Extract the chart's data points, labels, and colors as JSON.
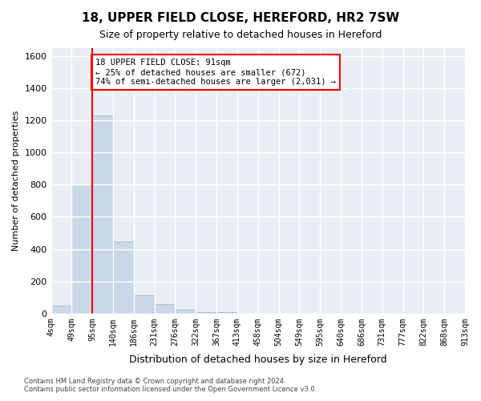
{
  "title1": "18, UPPER FIELD CLOSE, HEREFORD, HR2 7SW",
  "title2": "Size of property relative to detached houses in Hereford",
  "xlabel": "Distribution of detached houses by size in Hereford",
  "ylabel": "Number of detached properties",
  "footnote": "Contains HM Land Registry data © Crown copyright and database right 2024.\nContains public sector information licensed under the Open Government Licence v3.0.",
  "bin_labels": [
    "4sqm",
    "49sqm",
    "95sqm",
    "140sqm",
    "186sqm",
    "231sqm",
    "276sqm",
    "322sqm",
    "367sqm",
    "413sqm",
    "458sqm",
    "504sqm",
    "549sqm",
    "595sqm",
    "640sqm",
    "686sqm",
    "731sqm",
    "777sqm",
    "822sqm",
    "868sqm",
    "913sqm"
  ],
  "bar_values": [
    50,
    800,
    1230,
    450,
    115,
    60,
    25,
    10,
    8,
    0,
    0,
    0,
    0,
    0,
    0,
    0,
    0,
    0,
    0,
    0
  ],
  "bar_color": "#c8d8e8",
  "bar_edge_color": "#a0b8cc",
  "property_line_x": 2.0,
  "property_line_color": "red",
  "ylim": [
    0,
    1650
  ],
  "yticks": [
    0,
    200,
    400,
    600,
    800,
    1000,
    1200,
    1400,
    1600
  ],
  "annotation_text": "18 UPPER FIELD CLOSE: 91sqm\n← 25% of detached houses are smaller (672)\n74% of semi-detached houses are larger (2,031) →",
  "annotation_box_color": "white",
  "annotation_box_edge": "red",
  "bg_color": "#e8eef4",
  "grid_color": "white"
}
